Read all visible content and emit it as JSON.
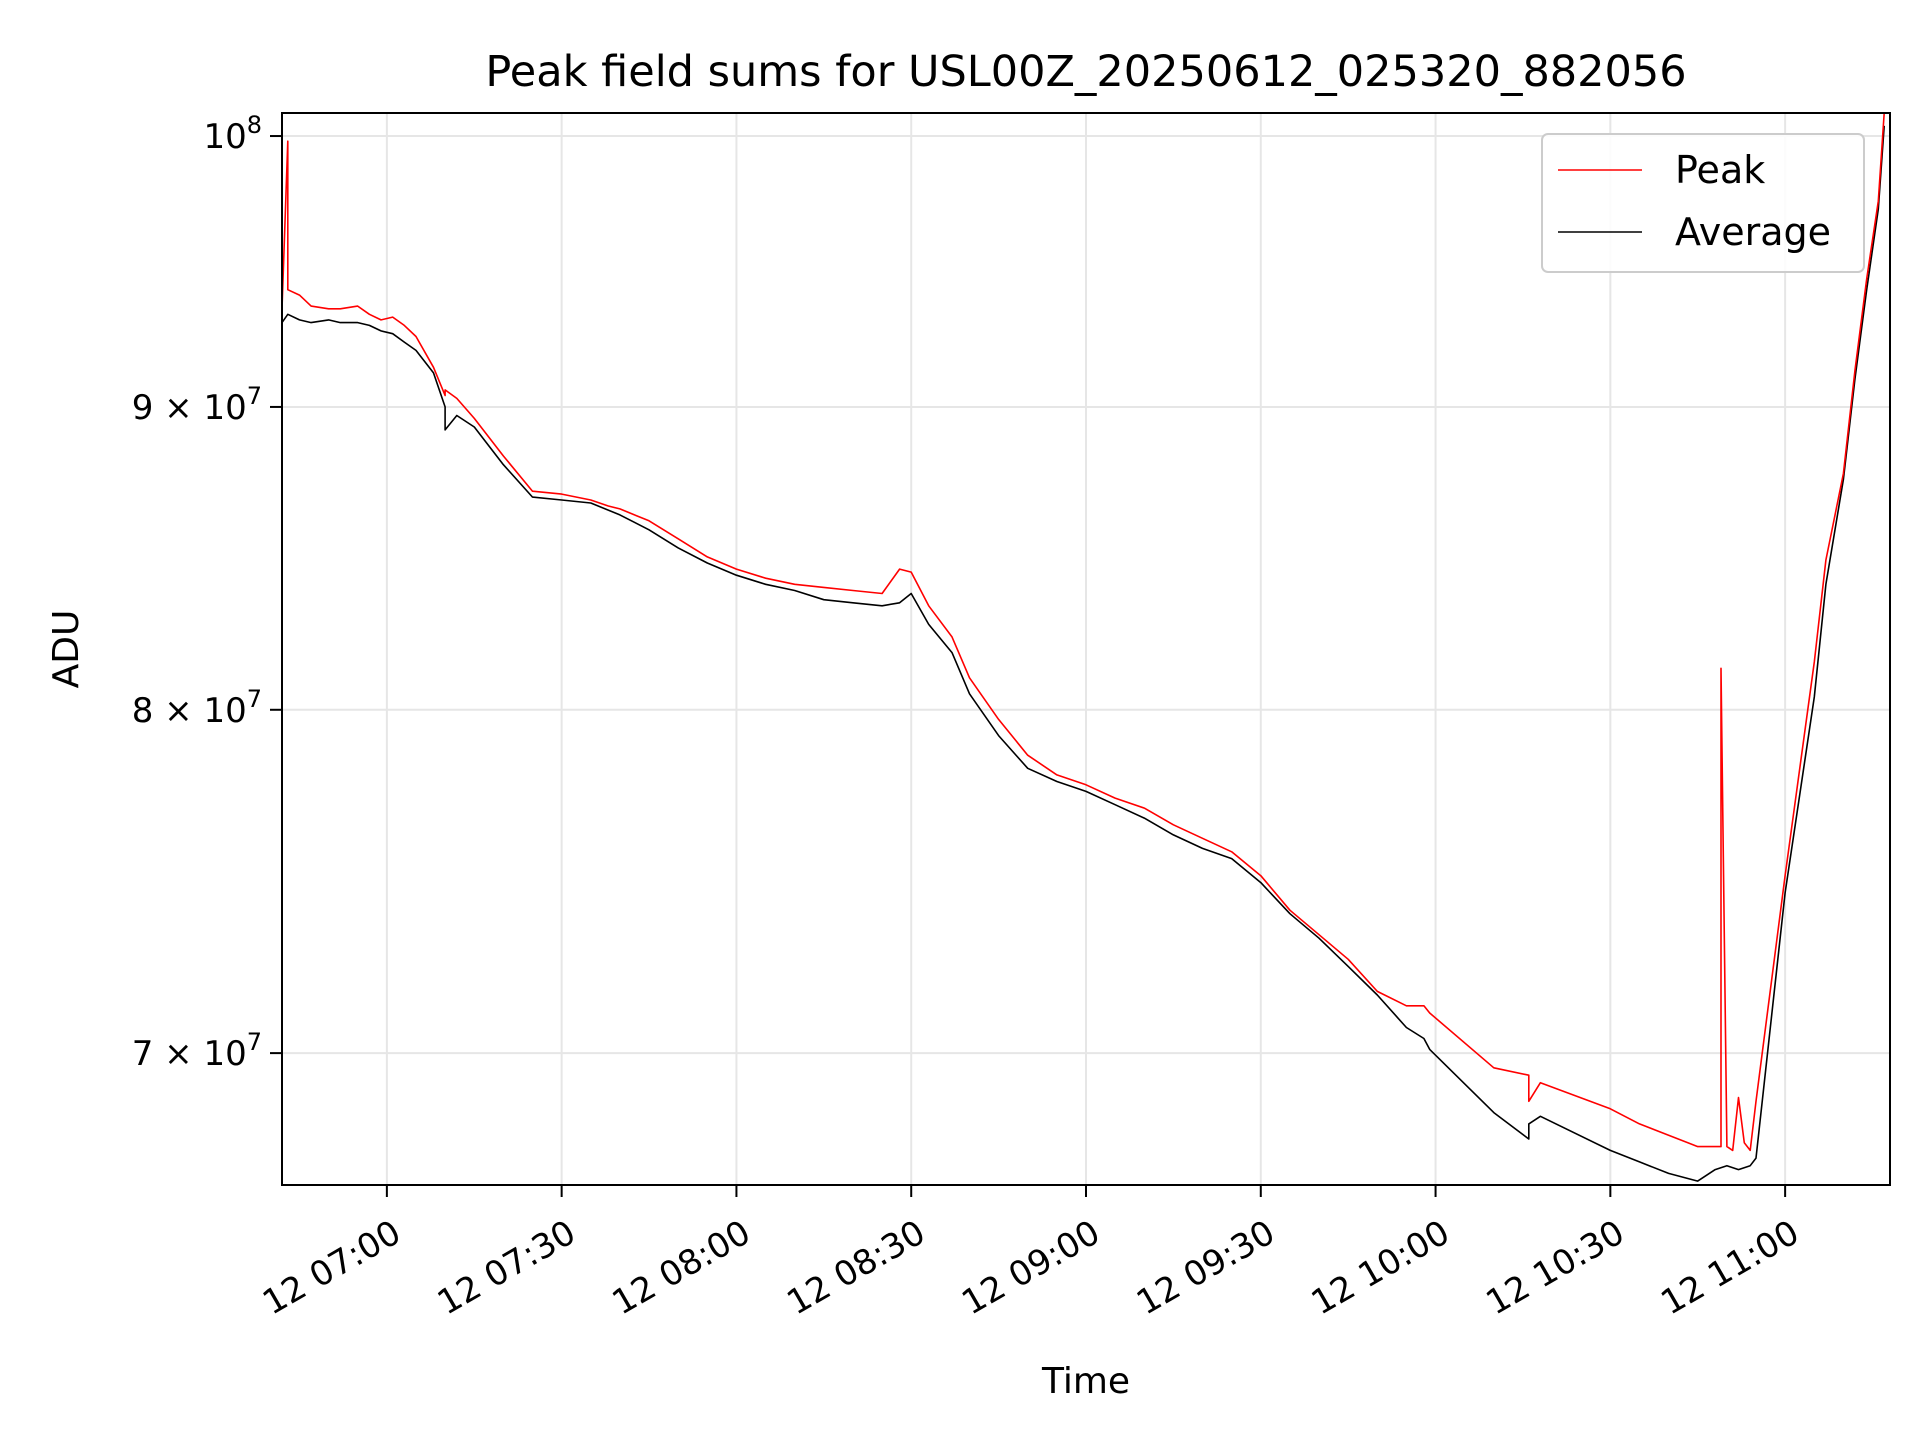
{
  "chart_data": {
    "type": "line",
    "title": "Peak field sums for USL00Z_20250612_025320_882056",
    "xlabel": "Time",
    "ylabel": "ADU",
    "yscale": "log",
    "ylim": [
      66500000,
      100900000
    ],
    "xlim": [
      "06:42",
      "11:18"
    ],
    "grid": true,
    "legend_position": "top-right",
    "x_ticks": [
      {
        "label": "12 07:00",
        "time": "07:00"
      },
      {
        "label": "12 07:30",
        "time": "07:30"
      },
      {
        "label": "12 08:00",
        "time": "08:00"
      },
      {
        "label": "12 08:30",
        "time": "08:30"
      },
      {
        "label": "12 09:00",
        "time": "09:00"
      },
      {
        "label": "12 09:30",
        "time": "09:30"
      },
      {
        "label": "12 10:00",
        "time": "10:00"
      },
      {
        "label": "12 10:30",
        "time": "10:30"
      },
      {
        "label": "12 11:00",
        "time": "11:00"
      }
    ],
    "y_ticks": [
      {
        "value": 100000000,
        "mantissa": "",
        "exponent": "8"
      },
      {
        "value": 90000000,
        "mantissa": "9",
        "exponent": "7"
      },
      {
        "value": 80000000,
        "mantissa": "8",
        "exponent": "7"
      },
      {
        "value": 70000000,
        "mantissa": "7",
        "exponent": "7"
      }
    ],
    "series": [
      {
        "name": "Peak",
        "color": "#ff0000",
        "x": [
          "06:42",
          "06:42",
          "06:43",
          "06:43",
          "06:45",
          "06:47",
          "06:50",
          "06:52",
          "06:55",
          "06:57",
          "06:59",
          "07:01",
          "07:03",
          "07:05",
          "07:08",
          "07:10",
          "07:10",
          "07:12",
          "07:15",
          "07:20",
          "07:25",
          "07:30",
          "07:35",
          "07:38",
          "07:40",
          "07:45",
          "07:50",
          "07:55",
          "08:00",
          "08:05",
          "08:10",
          "08:15",
          "08:20",
          "08:25",
          "08:28",
          "08:30",
          "08:33",
          "08:37",
          "08:40",
          "08:45",
          "08:50",
          "08:55",
          "09:00",
          "09:05",
          "09:10",
          "09:15",
          "09:20",
          "09:25",
          "09:30",
          "09:35",
          "09:40",
          "09:45",
          "09:50",
          "09:55",
          "09:58",
          "09:59",
          "10:10",
          "10:16",
          "10:16",
          "10:18",
          "10:30",
          "10:35",
          "10:40",
          "10:45",
          "10:49",
          "10:49",
          "10:50",
          "10:51",
          "10:52",
          "10:53",
          "10:54",
          "10:55",
          "11:00",
          "11:05",
          "11:07",
          "11:10",
          "11:12",
          "11:14",
          "11:16",
          "11:17"
        ],
        "values": [
          93100000,
          93500000,
          99800000,
          94200000,
          94000000,
          93600000,
          93500000,
          93500000,
          93600000,
          93300000,
          93100000,
          93200000,
          92900000,
          92500000,
          91400000,
          90400000,
          90600000,
          90300000,
          89600000,
          88300000,
          87100000,
          87000000,
          86800000,
          86600000,
          86500000,
          86100000,
          85500000,
          84900000,
          84500000,
          84200000,
          84000000,
          83900000,
          83800000,
          83700000,
          84500000,
          84400000,
          83300000,
          82300000,
          81000000,
          79700000,
          78600000,
          78000000,
          77700000,
          77300000,
          77000000,
          76500000,
          76100000,
          75700000,
          75000000,
          74000000,
          73300000,
          72600000,
          71700000,
          71300000,
          71300000,
          71100000,
          69600000,
          69400000,
          68700000,
          69200000,
          68500000,
          68100000,
          67800000,
          67500000,
          67500000,
          81300000,
          67500000,
          67400000,
          68800000,
          67600000,
          67400000,
          68700000,
          75000000,
          81500000,
          84800000,
          87700000,
          91300000,
          94600000,
          97500000,
          100900000
        ]
      },
      {
        "name": "Average",
        "color": "#000000",
        "x": [
          "06:42",
          "06:43",
          "06:45",
          "06:47",
          "06:50",
          "06:52",
          "06:55",
          "06:57",
          "06:59",
          "07:01",
          "07:03",
          "07:05",
          "07:08",
          "07:10",
          "07:10",
          "07:12",
          "07:15",
          "07:20",
          "07:25",
          "07:30",
          "07:35",
          "07:40",
          "07:45",
          "07:50",
          "07:55",
          "08:00",
          "08:05",
          "08:10",
          "08:15",
          "08:20",
          "08:25",
          "08:28",
          "08:30",
          "08:33",
          "08:37",
          "08:40",
          "08:45",
          "08:50",
          "08:55",
          "09:00",
          "09:05",
          "09:10",
          "09:15",
          "09:20",
          "09:25",
          "09:30",
          "09:35",
          "09:40",
          "09:45",
          "09:50",
          "09:55",
          "09:58",
          "09:59",
          "10:10",
          "10:16",
          "10:16",
          "10:18",
          "10:30",
          "10:35",
          "10:40",
          "10:45",
          "10:48",
          "10:50",
          "10:52",
          "10:54",
          "10:55",
          "11:00",
          "11:05",
          "11:07",
          "11:10",
          "11:12",
          "11:14",
          "11:16",
          "11:17"
        ],
        "values": [
          93000000,
          93300000,
          93100000,
          93000000,
          93100000,
          93000000,
          93000000,
          92900000,
          92700000,
          92600000,
          92300000,
          92000000,
          91200000,
          90000000,
          89200000,
          89700000,
          89300000,
          88000000,
          86900000,
          86800000,
          86700000,
          86300000,
          85800000,
          85200000,
          84700000,
          84300000,
          84000000,
          83800000,
          83500000,
          83400000,
          83300000,
          83400000,
          83700000,
          82700000,
          81800000,
          80500000,
          79200000,
          78200000,
          77800000,
          77500000,
          77100000,
          76700000,
          76200000,
          75800000,
          75500000,
          74800000,
          73900000,
          73200000,
          72400000,
          71600000,
          70700000,
          70400000,
          70100000,
          68400000,
          67700000,
          68100000,
          68300000,
          67400000,
          67100000,
          66800000,
          66600000,
          66900000,
          67000000,
          66900000,
          67000000,
          67200000,
          74500000,
          80400000,
          84000000,
          87500000,
          91000000,
          94200000,
          97200000,
          100400000
        ]
      }
    ]
  }
}
